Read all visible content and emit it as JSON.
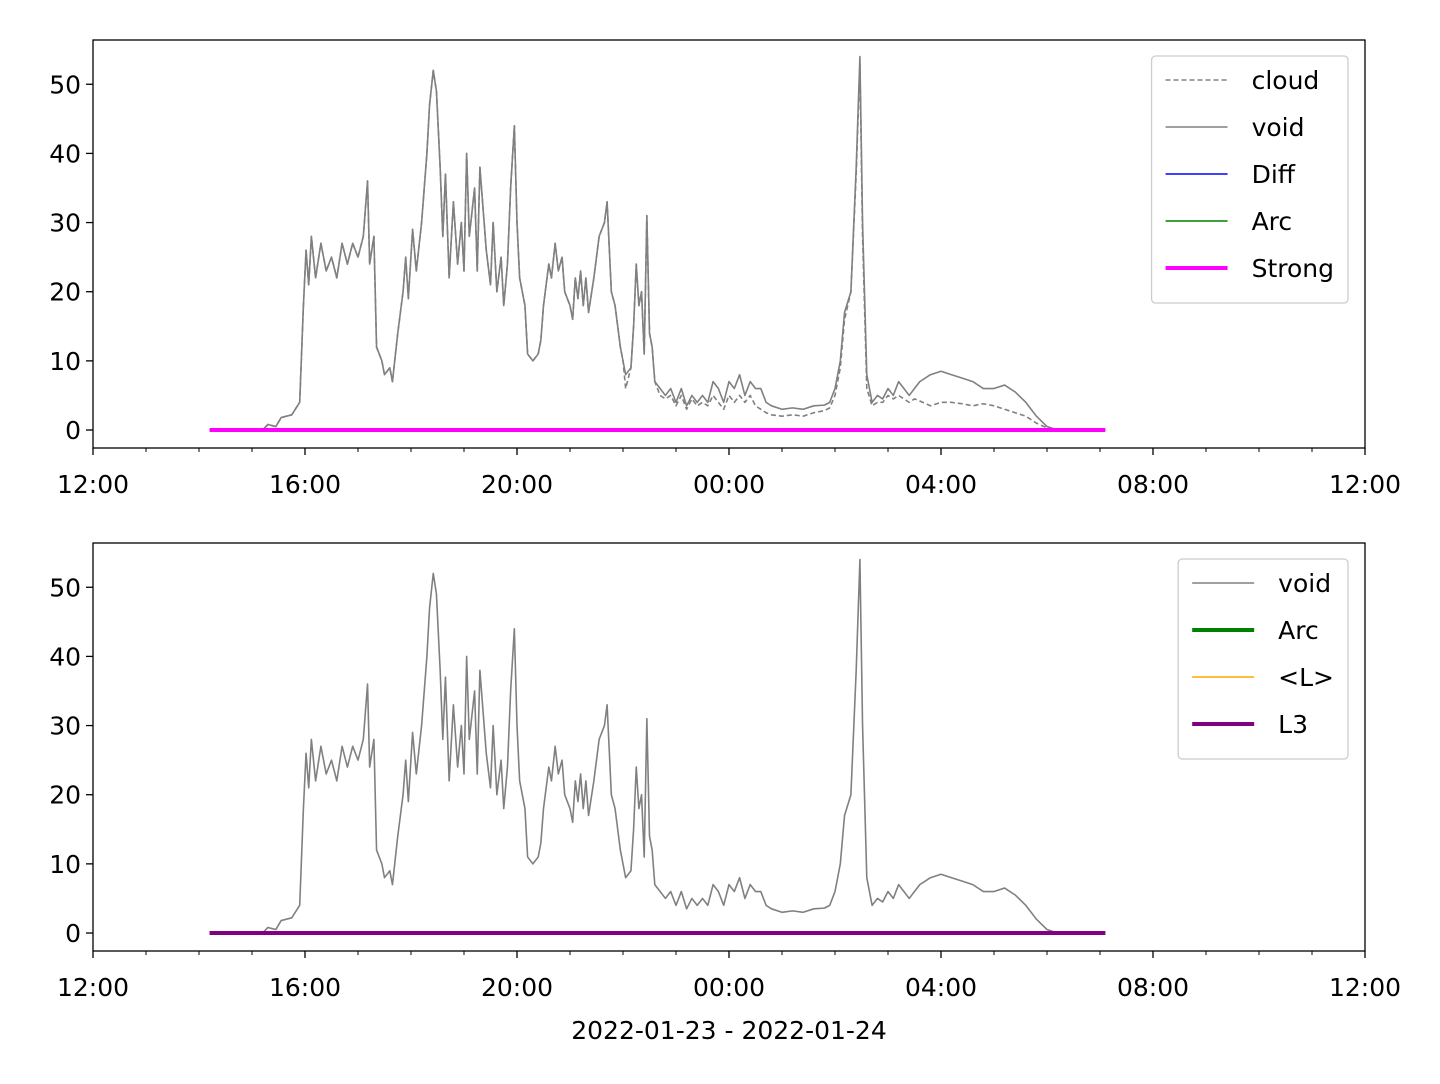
{
  "chart_data": [
    {
      "type": "line",
      "x": [
        14.2,
        15.2,
        15.3,
        15.45,
        15.55,
        15.75,
        15.9,
        15.97,
        16.02,
        16.07,
        16.12,
        16.2,
        16.3,
        16.4,
        16.5,
        16.6,
        16.7,
        16.8,
        16.9,
        17.0,
        17.1,
        17.18,
        17.22,
        17.3,
        17.35,
        17.45,
        17.5,
        17.6,
        17.65,
        17.75,
        17.85,
        17.9,
        17.95,
        18.03,
        18.1,
        18.2,
        18.3,
        18.35,
        18.42,
        18.48,
        18.55,
        18.6,
        18.65,
        18.72,
        18.8,
        18.88,
        18.95,
        19.0,
        19.05,
        19.1,
        19.2,
        19.25,
        19.3,
        19.35,
        19.42,
        19.5,
        19.55,
        19.62,
        19.7,
        19.75,
        19.82,
        19.88,
        19.95,
        20.0,
        20.05,
        20.15,
        20.2,
        20.3,
        20.4,
        20.45,
        20.5,
        20.6,
        20.65,
        20.72,
        20.78,
        20.85,
        20.9,
        21.0,
        21.05,
        21.1,
        21.15,
        21.2,
        21.25,
        21.3,
        21.35,
        21.45,
        21.55,
        21.65,
        21.7,
        21.78,
        21.85,
        21.95,
        22.0,
        22.05,
        22.15,
        22.2,
        22.25,
        22.3,
        22.35,
        22.4,
        22.45,
        22.5,
        22.55,
        22.6,
        22.7,
        22.8,
        22.9,
        23.0,
        23.1,
        23.2,
        23.3,
        23.4,
        23.5,
        23.6,
        23.7,
        23.8,
        23.9,
        24.0,
        24.1,
        24.2,
        24.3,
        24.4,
        24.5,
        24.6,
        24.7,
        24.8,
        25.0,
        25.2,
        25.4,
        25.6,
        25.8,
        25.9,
        26.0,
        26.1,
        26.18,
        26.3,
        26.4,
        26.47,
        26.52,
        26.6,
        26.7,
        26.8,
        26.9,
        27.0,
        27.1,
        27.2,
        27.3,
        27.4,
        27.5,
        27.6,
        27.8,
        28.0,
        28.2,
        28.4,
        28.6,
        28.8,
        29.0,
        29.2,
        29.4,
        29.6,
        29.8,
        30.0,
        30.2,
        31.1
      ],
      "series": [
        {
          "name": "cloud",
          "color": "#808080",
          "dash": true,
          "width": 1.6,
          "values": [
            0,
            0,
            0.8,
            0.5,
            1.8,
            2.2,
            4,
            18,
            26,
            21,
            28,
            22,
            27,
            23,
            25,
            22,
            27,
            24,
            27,
            25,
            28,
            36,
            24,
            28,
            12,
            10,
            8,
            9,
            7,
            14,
            20,
            25,
            19,
            29,
            23,
            30,
            40,
            47,
            52,
            49,
            38,
            28,
            37,
            22,
            33,
            24,
            30,
            23,
            40,
            28,
            35,
            23,
            38,
            33,
            26,
            21,
            30,
            20,
            25,
            18,
            24,
            35,
            44,
            30,
            22,
            18,
            11,
            10,
            11,
            13,
            18,
            24,
            22,
            27,
            23,
            25,
            20,
            18,
            16,
            22,
            19,
            23,
            18,
            22,
            17,
            22,
            28,
            30,
            33,
            20,
            18,
            12,
            10,
            6,
            9,
            15,
            24,
            18,
            20,
            11,
            31,
            14,
            12,
            7,
            5,
            4.5,
            5,
            3.5,
            5,
            3,
            4.5,
            3.5,
            4,
            3.5,
            5,
            4,
            3,
            5,
            4,
            5,
            4,
            5,
            3.5,
            3,
            2.5,
            2.2,
            2,
            2.2,
            2,
            2.5,
            2.8,
            3.2,
            5,
            9,
            16,
            20,
            37,
            53,
            28,
            6,
            3.5,
            4,
            4,
            5,
            4.5,
            5,
            4.5,
            4,
            4.5,
            4.2,
            3.5,
            4,
            4,
            3.8,
            3.5,
            3.8,
            3.5,
            3,
            2.5,
            2,
            1,
            0.3,
            0,
            0
          ]
        },
        {
          "name": "void",
          "color": "#808080",
          "width": 1.6,
          "values": [
            0,
            0,
            0.8,
            0.5,
            1.8,
            2.2,
            4,
            18,
            26,
            21,
            28,
            22,
            27,
            23,
            25,
            22,
            27,
            24,
            27,
            25,
            28,
            36,
            24,
            28,
            12,
            10,
            8,
            9,
            7,
            14,
            20,
            25,
            19,
            29,
            23,
            30,
            40,
            47,
            52,
            49,
            38,
            28,
            37,
            22,
            33,
            24,
            30,
            23,
            40,
            28,
            35,
            23,
            38,
            33,
            26,
            21,
            30,
            20,
            25,
            18,
            24,
            35,
            44,
            30,
            22,
            18,
            11,
            10,
            11,
            13,
            18,
            24,
            22,
            27,
            23,
            25,
            20,
            18,
            16,
            22,
            19,
            23,
            18,
            22,
            17,
            22,
            28,
            30,
            33,
            20,
            18,
            12,
            10,
            8,
            9,
            15,
            24,
            18,
            20,
            11,
            31,
            14,
            12,
            7,
            6,
            5,
            6,
            4,
            6,
            3.5,
            5,
            4,
            5,
            4,
            7,
            6,
            4,
            7,
            6,
            8,
            5,
            7,
            6,
            6,
            4,
            3.5,
            3,
            3.2,
            3,
            3.5,
            3.6,
            4,
            6,
            10,
            17,
            20,
            38,
            54,
            30,
            8,
            4,
            5,
            4.5,
            6,
            5,
            7,
            6,
            5,
            6,
            7,
            8,
            8.5,
            8,
            7.5,
            7,
            6,
            6,
            6.5,
            5.5,
            4,
            2,
            0.5,
            0,
            0
          ]
        },
        {
          "name": "Diff",
          "color": "#0000ff",
          "width": 1.6,
          "x": [
            14.2,
            31.1
          ],
          "values": [
            0,
            0
          ]
        },
        {
          "name": "Arc",
          "color": "#008000",
          "width": 1.6,
          "x": [
            14.2,
            31.1
          ],
          "values": [
            0,
            0
          ]
        },
        {
          "name": "Strong",
          "color": "#ff00ff",
          "width": 4,
          "x": [
            14.2,
            31.1
          ],
          "values": [
            0,
            0
          ]
        }
      ],
      "xlim": [
        12,
        36
      ],
      "xticks": [
        {
          "value": 12,
          "label": "12:00"
        },
        {
          "value": 16,
          "label": "16:00"
        },
        {
          "value": 20,
          "label": "20:00"
        },
        {
          "value": 24,
          "label": "00:00"
        },
        {
          "value": 28,
          "label": "04:00"
        },
        {
          "value": 32,
          "label": "08:00"
        },
        {
          "value": 36,
          "label": "12:00"
        }
      ],
      "xminorticks": [
        13,
        14,
        15,
        17,
        18,
        19,
        21,
        22,
        23,
        25,
        26,
        27,
        29,
        30,
        31,
        33,
        34,
        35
      ],
      "ylim": [
        -2.6,
        56.4
      ],
      "yticks": [
        0,
        10,
        20,
        30,
        40,
        50
      ],
      "legend": "upper right"
    },
    {
      "type": "line",
      "x": [
        14.2,
        15.2,
        15.3,
        15.45,
        15.55,
        15.75,
        15.9,
        15.97,
        16.02,
        16.07,
        16.12,
        16.2,
        16.3,
        16.4,
        16.5,
        16.6,
        16.7,
        16.8,
        16.9,
        17.0,
        17.1,
        17.18,
        17.22,
        17.3,
        17.35,
        17.45,
        17.5,
        17.6,
        17.65,
        17.75,
        17.85,
        17.9,
        17.95,
        18.03,
        18.1,
        18.2,
        18.3,
        18.35,
        18.42,
        18.48,
        18.55,
        18.6,
        18.65,
        18.72,
        18.8,
        18.88,
        18.95,
        19.0,
        19.05,
        19.1,
        19.2,
        19.25,
        19.3,
        19.35,
        19.42,
        19.5,
        19.55,
        19.62,
        19.7,
        19.75,
        19.82,
        19.88,
        19.95,
        20.0,
        20.05,
        20.15,
        20.2,
        20.3,
        20.4,
        20.45,
        20.5,
        20.6,
        20.65,
        20.72,
        20.78,
        20.85,
        20.9,
        21.0,
        21.05,
        21.1,
        21.15,
        21.2,
        21.25,
        21.3,
        21.35,
        21.45,
        21.55,
        21.65,
        21.7,
        21.78,
        21.85,
        21.95,
        22.0,
        22.05,
        22.15,
        22.2,
        22.25,
        22.3,
        22.35,
        22.4,
        22.45,
        22.5,
        22.55,
        22.6,
        22.7,
        22.8,
        22.9,
        23.0,
        23.1,
        23.2,
        23.3,
        23.4,
        23.5,
        23.6,
        23.7,
        23.8,
        23.9,
        24.0,
        24.1,
        24.2,
        24.3,
        24.4,
        24.5,
        24.6,
        24.7,
        24.8,
        25.0,
        25.2,
        25.4,
        25.6,
        25.8,
        25.9,
        26.0,
        26.1,
        26.18,
        26.3,
        26.4,
        26.47,
        26.52,
        26.6,
        26.7,
        26.8,
        26.9,
        27.0,
        27.1,
        27.2,
        27.3,
        27.4,
        27.5,
        27.6,
        27.8,
        28.0,
        28.2,
        28.4,
        28.6,
        28.8,
        29.0,
        29.2,
        29.4,
        29.6,
        29.8,
        30.0,
        30.2,
        31.1
      ],
      "series": [
        {
          "name": "void",
          "color": "#808080",
          "width": 1.6,
          "values": [
            0,
            0,
            0.8,
            0.5,
            1.8,
            2.2,
            4,
            18,
            26,
            21,
            28,
            22,
            27,
            23,
            25,
            22,
            27,
            24,
            27,
            25,
            28,
            36,
            24,
            28,
            12,
            10,
            8,
            9,
            7,
            14,
            20,
            25,
            19,
            29,
            23,
            30,
            40,
            47,
            52,
            49,
            38,
            28,
            37,
            22,
            33,
            24,
            30,
            23,
            40,
            28,
            35,
            23,
            38,
            33,
            26,
            21,
            30,
            20,
            25,
            18,
            24,
            35,
            44,
            30,
            22,
            18,
            11,
            10,
            11,
            13,
            18,
            24,
            22,
            27,
            23,
            25,
            20,
            18,
            16,
            22,
            19,
            23,
            18,
            22,
            17,
            22,
            28,
            30,
            33,
            20,
            18,
            12,
            10,
            8,
            9,
            15,
            24,
            18,
            20,
            11,
            31,
            14,
            12,
            7,
            6,
            5,
            6,
            4,
            6,
            3.5,
            5,
            4,
            5,
            4,
            7,
            6,
            4,
            7,
            6,
            8,
            5,
            7,
            6,
            6,
            4,
            3.5,
            3,
            3.2,
            3,
            3.5,
            3.6,
            4,
            6,
            10,
            17,
            20,
            38,
            54,
            30,
            8,
            4,
            5,
            4.5,
            6,
            5,
            7,
            6,
            5,
            6,
            7,
            8,
            8.5,
            8,
            7.5,
            7,
            6,
            6,
            6.5,
            5.5,
            4,
            2,
            0.5,
            0,
            0
          ]
        },
        {
          "name": "Arc",
          "color": "#008000",
          "width": 4,
          "x": [
            14.2,
            31.1
          ],
          "values": [
            0,
            0
          ]
        },
        {
          "name": "<L>",
          "color": "#ffa500",
          "width": 1.6,
          "x": [
            14.2,
            31.1
          ],
          "values": [
            0,
            0
          ]
        },
        {
          "name": "L3",
          "color": "#800080",
          "width": 4,
          "x": [
            14.2,
            31.1
          ],
          "values": [
            0,
            0
          ]
        }
      ],
      "xlim": [
        12,
        36
      ],
      "xticks": [
        {
          "value": 12,
          "label": "12:00"
        },
        {
          "value": 16,
          "label": "16:00"
        },
        {
          "value": 20,
          "label": "20:00"
        },
        {
          "value": 24,
          "label": "00:00"
        },
        {
          "value": 28,
          "label": "04:00"
        },
        {
          "value": 32,
          "label": "08:00"
        },
        {
          "value": 36,
          "label": "12:00"
        }
      ],
      "xminorticks": [
        13,
        14,
        15,
        17,
        18,
        19,
        21,
        22,
        23,
        25,
        26,
        27,
        29,
        30,
        31,
        33,
        34,
        35
      ],
      "ylim": [
        -2.6,
        56.4
      ],
      "yticks": [
        0,
        10,
        20,
        30,
        40,
        50
      ],
      "xlabel": "2022-01-23 - 2022-01-24",
      "legend": "upper right"
    }
  ]
}
